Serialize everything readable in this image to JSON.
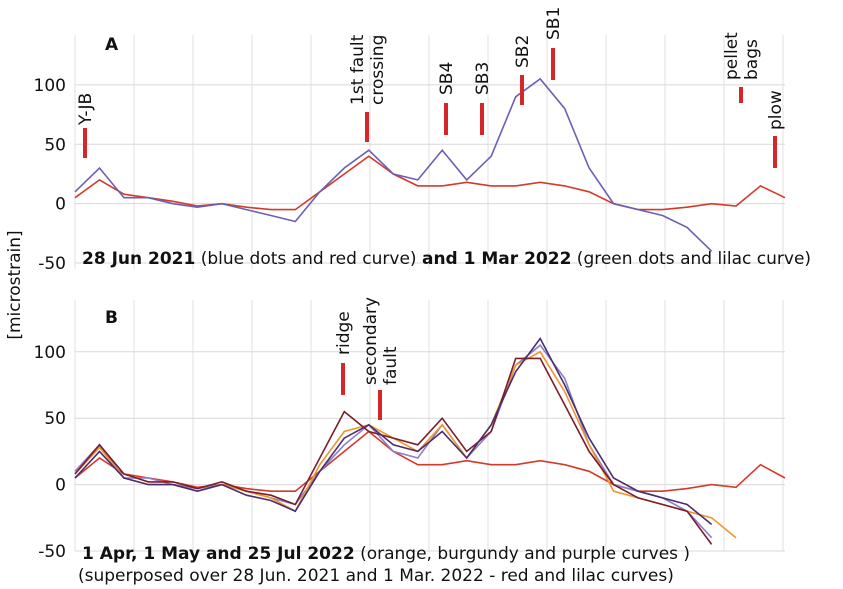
{
  "y_label": "[microstrain]",
  "chart_data": [
    {
      "type": "line",
      "panel": "A",
      "ylim": [
        -55,
        142
      ],
      "yticks": [
        -50,
        0,
        50,
        100
      ],
      "grid": true,
      "caption": [
        {
          "text": "28 Jun 2021",
          "bold": true
        },
        {
          "text": " (blue dots and red curve) ",
          "bold": false
        },
        {
          "text": "and 1 Mar 2022",
          "bold": true
        },
        {
          "text": " (green dots and lilac curve)",
          "bold": false
        }
      ],
      "annotations": [
        {
          "lines": [
            "Y-JB"
          ]
        },
        {
          "lines": [
            "1st fault",
            "crossing"
          ]
        },
        {
          "lines": [
            "SB4"
          ]
        },
        {
          "lines": [
            "SB3"
          ]
        },
        {
          "lines": [
            "SB2"
          ]
        },
        {
          "lines": [
            "SB1"
          ]
        },
        {
          "lines": [
            "pellet",
            "bags"
          ]
        },
        {
          "lines": [
            "plow"
          ]
        }
      ],
      "series": [
        {
          "color": "#d43a2a",
          "values": [
            5,
            20,
            8,
            5,
            2,
            -2,
            0,
            -3,
            -5,
            -5,
            10,
            25,
            40,
            25,
            15,
            15,
            18,
            15,
            15,
            18,
            15,
            10,
            0,
            -5,
            -5,
            -3,
            0,
            -2,
            15,
            5
          ]
        },
        {
          "color": "#6b5fb5",
          "values": [
            10,
            30,
            5,
            5,
            0,
            -3,
            0,
            -5,
            -10,
            -15,
            10,
            30,
            45,
            25,
            20,
            45,
            20,
            40,
            90,
            105,
            80,
            30,
            0,
            -5,
            -10,
            -20,
            -40,
            null,
            null,
            null
          ]
        }
      ]
    },
    {
      "type": "line",
      "panel": "B",
      "ylim": [
        -50,
        139
      ],
      "yticks": [
        -50,
        0,
        50,
        100
      ],
      "grid": true,
      "caption": [
        {
          "text": "1 Apr, 1 May and 25 Jul 2022",
          "bold": true
        },
        {
          "text": " (orange, burgundy and purple curves )",
          "bold": false
        }
      ],
      "caption2": "(superposed over 28 Jun. 2021 and 1 Mar. 2022 - red and lilac curves)",
      "annotations": [
        {
          "lines": [
            "ridge"
          ]
        },
        {
          "lines": [
            "secondary",
            "fault"
          ]
        }
      ],
      "series": [
        {
          "color": "#d43a2a",
          "values": [
            5,
            20,
            8,
            5,
            2,
            -2,
            0,
            -3,
            -5,
            -5,
            10,
            25,
            40,
            25,
            15,
            15,
            18,
            15,
            15,
            18,
            15,
            10,
            0,
            -5,
            -5,
            -3,
            0,
            -2,
            15,
            5
          ]
        },
        {
          "color": "#8a7fd0",
          "values": [
            10,
            30,
            5,
            5,
            0,
            -3,
            0,
            -5,
            -10,
            -15,
            10,
            30,
            45,
            25,
            20,
            45,
            20,
            40,
            90,
            105,
            80,
            30,
            0,
            -5,
            -10,
            -20,
            -40,
            null,
            null,
            null
          ]
        },
        {
          "color": "#f0962a",
          "values": [
            8,
            28,
            5,
            0,
            0,
            -5,
            0,
            -5,
            -10,
            -20,
            15,
            40,
            45,
            35,
            25,
            45,
            20,
            45,
            90,
            100,
            70,
            30,
            -5,
            -10,
            -15,
            -20,
            -25,
            -40,
            null,
            null
          ]
        },
        {
          "color": "#7a1f2b",
          "values": [
            8,
            30,
            8,
            2,
            2,
            -3,
            2,
            -5,
            -8,
            -15,
            20,
            55,
            40,
            35,
            30,
            50,
            25,
            40,
            95,
            95,
            60,
            25,
            0,
            -10,
            -15,
            -20,
            -45,
            null,
            null,
            null
          ]
        },
        {
          "color": "#4b2e6e",
          "values": [
            5,
            25,
            5,
            0,
            0,
            -5,
            0,
            -8,
            -12,
            -20,
            10,
            35,
            45,
            30,
            25,
            40,
            20,
            45,
            85,
            110,
            75,
            35,
            5,
            -5,
            -10,
            -15,
            -30,
            null,
            null,
            null
          ]
        }
      ]
    }
  ]
}
